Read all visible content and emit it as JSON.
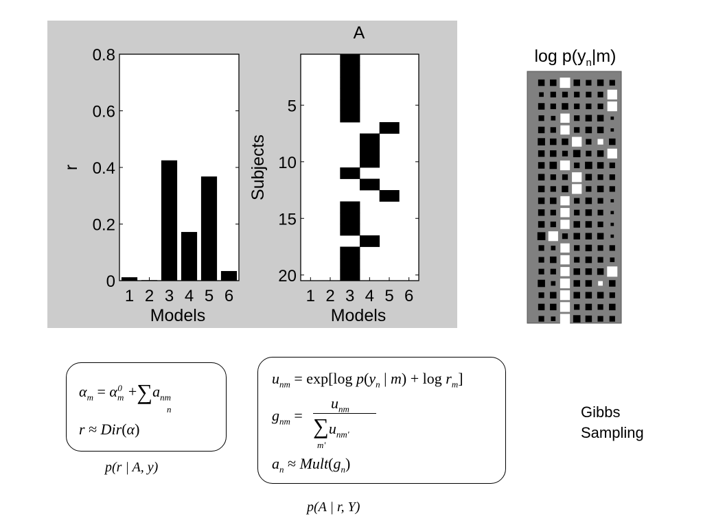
{
  "chart_data": [
    {
      "type": "bar",
      "title": "",
      "xlabel": "Models",
      "ylabel": "r",
      "categories": [
        "1",
        "2",
        "3",
        "4",
        "5",
        "6"
      ],
      "values": [
        0.012,
        0.002,
        0.425,
        0.172,
        0.368,
        0.034
      ],
      "ylim": [
        0,
        0.8
      ],
      "yticks": [
        0,
        0.2,
        0.4,
        0.6,
        0.8
      ],
      "ytick_labels": [
        "0",
        "0.2",
        "0.4",
        "0.6",
        "0.8"
      ],
      "grid": false,
      "bar_color": "#000000"
    },
    {
      "type": "heatmap",
      "title": "A",
      "xlabel": "Models",
      "ylabel": "Subjects",
      "x_tick_labels": [
        "1",
        "2",
        "3",
        "4",
        "5",
        "6"
      ],
      "y_ticks": [
        5,
        10,
        15,
        20
      ],
      "y_tick_labels": [
        "5",
        "10",
        "15",
        "20"
      ],
      "assigned_model": [
        3,
        3,
        3,
        3,
        3,
        3,
        5,
        4,
        4,
        4,
        3,
        4,
        5,
        3,
        3,
        3,
        4,
        3,
        3,
        3
      ],
      "colors": {
        "assigned": "#000000",
        "unassigned": "#ffffff"
      }
    },
    {
      "type": "heatmap",
      "title": "log p(y_n|m)",
      "title_main": "log p(y",
      "title_sub": "n",
      "title_end": "|m)",
      "colors": {
        "background": "#808080",
        "positive": "#ffffff",
        "negative": "#000000"
      },
      "values": [
        [
          -0.4,
          -0.4,
          1.0,
          -0.4,
          -0.3,
          -0.4,
          -0.3
        ],
        [
          -0.2,
          -0.3,
          -0.3,
          -0.3,
          -0.3,
          -0.3,
          0.9
        ],
        [
          -0.4,
          -0.3,
          -0.4,
          -0.3,
          -0.3,
          -0.3,
          0.9
        ],
        [
          -0.3,
          -0.2,
          0.8,
          -0.3,
          -0.4,
          -0.4,
          -0.1
        ],
        [
          -0.4,
          -0.3,
          0.8,
          -0.3,
          -0.4,
          -0.4,
          -0.1
        ],
        [
          -0.5,
          -0.4,
          -0.4,
          0.9,
          -0.3,
          0.3,
          -0.4
        ],
        [
          -0.4,
          -0.4,
          -0.3,
          -0.5,
          -0.3,
          -0.4,
          0.9
        ],
        [
          -0.4,
          -0.5,
          0.9,
          -0.3,
          -0.5,
          -0.4,
          -0.3
        ],
        [
          -0.4,
          -0.3,
          -0.3,
          0.9,
          -0.4,
          -0.3,
          -0.3
        ],
        [
          -0.4,
          -0.3,
          -0.4,
          0.9,
          -0.3,
          -0.4,
          -0.3
        ],
        [
          -0.4,
          -0.4,
          0.8,
          -0.3,
          -0.4,
          -0.3,
          -0.1
        ],
        [
          -0.4,
          -0.3,
          0.8,
          -0.3,
          -0.4,
          -0.3,
          -0.1
        ],
        [
          -0.4,
          -0.3,
          0.8,
          -0.4,
          -0.4,
          -0.3,
          -0.1
        ],
        [
          -0.6,
          0.9,
          -0.3,
          -0.4,
          -0.4,
          -0.4,
          -0.1
        ],
        [
          -0.3,
          -0.2,
          0.8,
          -0.3,
          -0.4,
          -0.3,
          -0.3
        ],
        [
          -0.3,
          -0.4,
          0.8,
          -0.3,
          -0.4,
          -0.3,
          -0.2
        ],
        [
          -0.3,
          -0.3,
          0.8,
          -0.4,
          -0.4,
          -0.4,
          1.0
        ],
        [
          -0.5,
          -0.2,
          0.9,
          -0.4,
          -0.4,
          0.2,
          -0.4
        ],
        [
          -0.3,
          -0.4,
          0.9,
          -0.4,
          -0.4,
          -0.4,
          -0.3
        ],
        [
          -0.4,
          -0.4,
          0.9,
          -0.3,
          -0.4,
          -0.3,
          -0.4
        ],
        [
          -0.3,
          -0.2,
          0.9,
          -0.5,
          -0.4,
          -0.3,
          -0.3
        ]
      ]
    }
  ],
  "formulas": {
    "dirichlet_box": {
      "caption": "p(r | A, y)"
    },
    "assign_box": {
      "caption": "p(A | r, Y)"
    }
  },
  "side_label": {
    "line1": "Gibbs",
    "line2": "Sampling"
  }
}
